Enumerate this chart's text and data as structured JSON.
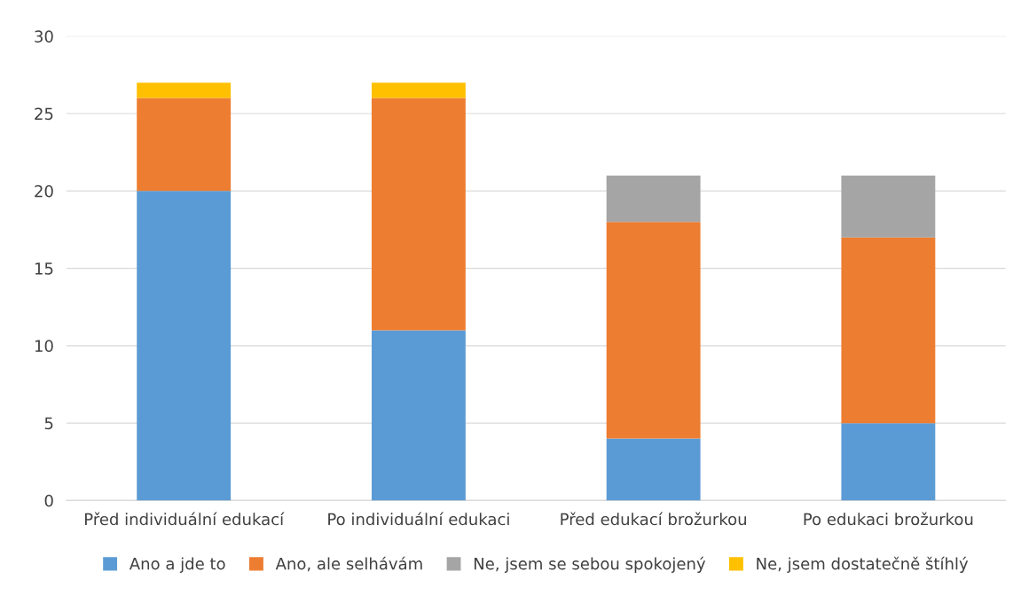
{
  "chart_data": {
    "type": "bar",
    "stacked": true,
    "categories": [
      "Před individuální edukací",
      "Po individuální edukaci",
      "Před edukací brožurkou",
      "Po edukaci brožurkou"
    ],
    "series": [
      {
        "name": "Ano a jde to",
        "color": "#5b9bd5",
        "values": [
          20,
          11,
          4,
          5
        ]
      },
      {
        "name": "Ano, ale selhávám",
        "color": "#ed7d31",
        "values": [
          6,
          15,
          14,
          12
        ]
      },
      {
        "name": "Ne, jsem se sebou spokojený",
        "color": "#a5a5a5",
        "values": [
          0,
          0,
          3,
          4
        ]
      },
      {
        "name": "Ne, jsem dostatečně štíhlý",
        "color": "#ffc000",
        "values": [
          1,
          1,
          0,
          0
        ]
      }
    ],
    "ylim": [
      0,
      30
    ],
    "yticks": [
      0,
      5,
      10,
      15,
      20,
      25,
      30
    ],
    "grid": "y",
    "legend": "bottom"
  }
}
